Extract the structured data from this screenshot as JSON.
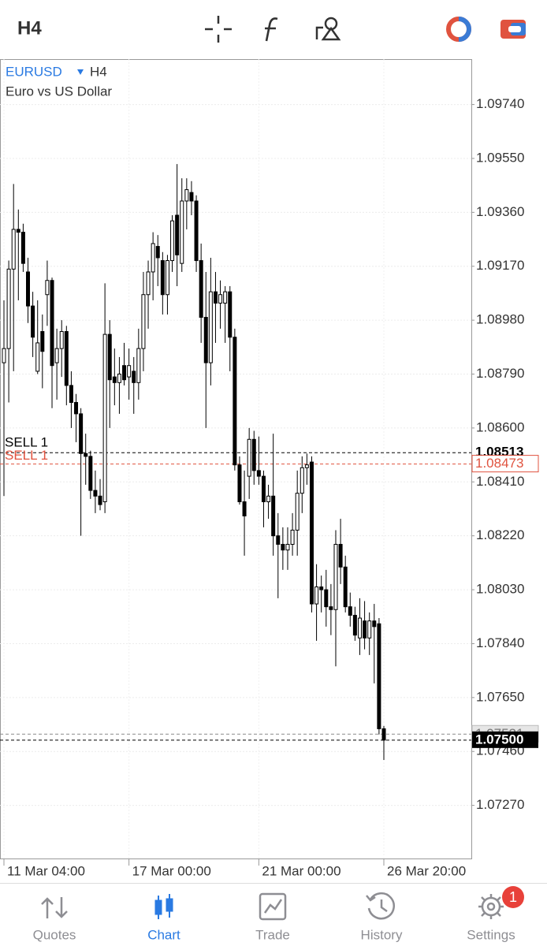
{
  "toolbar": {
    "timeframe": "H4"
  },
  "chart_data": {
    "type": "candlestick",
    "symbol": "EURUSD",
    "timeframe": "H4",
    "description": "Euro vs US Dollar",
    "categories": [
      "11 Mar 04:00",
      null,
      null,
      null,
      null,
      null,
      null,
      null,
      null,
      null,
      null,
      null,
      null,
      null,
      null,
      null,
      null,
      null,
      null,
      null,
      null,
      null,
      null,
      null,
      null,
      null,
      "17 Mar 00:00",
      null,
      null,
      null,
      null,
      null,
      null,
      null,
      null,
      null,
      null,
      null,
      null,
      null,
      null,
      null,
      null,
      null,
      null,
      null,
      null,
      null,
      null,
      null,
      null,
      null,
      null,
      "21 Mar 00:00",
      null,
      null,
      null,
      null,
      null,
      null,
      null,
      null,
      null,
      null,
      null,
      null,
      null,
      null,
      null,
      null,
      null,
      null,
      null,
      null,
      null,
      null,
      null,
      null,
      null,
      "26 Mar 20:00"
    ],
    "open": [
      1.0883,
      1.0888,
      1.0916,
      1.093,
      1.0929,
      1.0915,
      1.0903,
      1.088,
      1.0894,
      1.0907,
      1.0912,
      1.0883,
      1.0888,
      1.0894,
      1.0875,
      1.0869,
      1.0865,
      1.0851,
      1.085,
      1.0838,
      1.0836,
      1.0834,
      1.0893,
      1.0878,
      1.0876,
      1.0882,
      1.0878,
      1.088,
      1.0876,
      1.0888,
      1.0907,
      1.0915,
      1.0924,
      1.0919,
      1.0907,
      1.0919,
      1.0935,
      1.0918,
      1.094,
      1.0943,
      1.094,
      1.0919,
      1.0899,
      1.0883,
      1.0908,
      1.0904,
      1.0904,
      1.0908,
      1.0892,
      1.0847,
      1.0834,
      1.0843,
      1.0856,
      1.0845,
      1.0843,
      1.0834,
      1.0836,
      1.0822,
      1.0819,
      1.0817,
      1.0819,
      1.0824,
      1.0837,
      1.0846,
      1.0848,
      1.0798,
      1.0804,
      1.0803,
      1.0797,
      1.0796,
      1.0819,
      1.0811,
      1.0797,
      1.0794,
      1.0786,
      1.0792,
      1.0786,
      1.0792,
      1.0791,
      1.0754
    ],
    "high": [
      1.0905,
      1.0919,
      1.0946,
      1.0937,
      1.0932,
      1.092,
      1.0908,
      1.0905,
      1.09,
      1.0919,
      1.0913,
      1.0895,
      1.0898,
      1.0896,
      1.088,
      1.0872,
      1.0867,
      1.0858,
      1.0852,
      1.0845,
      1.0842,
      1.0911,
      1.0898,
      1.0888,
      1.0885,
      1.089,
      1.0888,
      1.0885,
      1.0895,
      1.0915,
      1.0919,
      1.0929,
      1.0928,
      1.0922,
      1.0921,
      1.0935,
      1.0953,
      1.0948,
      1.0948,
      1.0947,
      1.0942,
      1.0925,
      1.0915,
      1.092,
      1.0915,
      1.0912,
      1.091,
      1.091,
      1.0895,
      1.085,
      1.0845,
      1.086,
      1.0859,
      1.0857,
      1.0845,
      1.084,
      1.0858,
      1.083,
      1.0825,
      1.0825,
      1.083,
      1.0845,
      1.085,
      1.0851,
      1.085,
      1.0812,
      1.0808,
      1.081,
      1.0805,
      1.0824,
      1.0828,
      1.0815,
      1.0802,
      1.0797,
      1.08,
      1.0799,
      1.0795,
      1.0798,
      1.0793,
      1.0755
    ],
    "low": [
      1.0836,
      1.0869,
      1.088,
      1.0905,
      1.0915,
      1.0897,
      1.0885,
      1.0879,
      1.0874,
      1.0896,
      1.0867,
      1.087,
      1.0878,
      1.0868,
      1.086,
      1.0855,
      1.0822,
      1.084,
      1.0835,
      1.083,
      1.0831,
      1.083,
      1.086,
      1.0868,
      1.0865,
      1.0875,
      1.087,
      1.0865,
      1.087,
      1.088,
      1.0895,
      1.0905,
      1.091,
      1.09,
      1.09,
      1.0915,
      1.091,
      1.0915,
      1.093,
      1.0935,
      1.0915,
      1.089,
      1.086,
      1.0875,
      1.089,
      1.0895,
      1.089,
      1.088,
      1.0845,
      1.0833,
      1.0815,
      1.0835,
      1.084,
      1.084,
      1.0825,
      1.0828,
      1.0815,
      1.08,
      1.081,
      1.081,
      1.0815,
      1.0815,
      1.083,
      1.084,
      1.0795,
      1.0785,
      1.0795,
      1.079,
      1.0787,
      1.0776,
      1.0805,
      1.0795,
      1.079,
      1.0785,
      1.078,
      1.0782,
      1.078,
      1.077,
      1.0752,
      1.0743
    ],
    "close": [
      1.0888,
      1.0916,
      1.093,
      1.0929,
      1.0918,
      1.0903,
      1.0892,
      1.089,
      1.0887,
      1.0912,
      1.0882,
      1.0888,
      1.0894,
      1.0875,
      1.0869,
      1.0865,
      1.0851,
      1.085,
      1.0838,
      1.0836,
      1.0833,
      1.0893,
      1.0877,
      1.0876,
      1.0879,
      1.0877,
      1.0882,
      1.0876,
      1.0888,
      1.0907,
      1.0915,
      1.0925,
      1.092,
      1.0907,
      1.0919,
      1.0933,
      1.0921,
      1.094,
      1.0944,
      1.094,
      1.0919,
      1.0899,
      1.0883,
      1.0908,
      1.0904,
      1.0907,
      1.0908,
      1.0892,
      1.0847,
      1.0834,
      1.0829,
      1.0856,
      1.0845,
      1.0843,
      1.0834,
      1.0836,
      1.0822,
      1.0819,
      1.0817,
      1.0819,
      1.0824,
      1.0837,
      1.0846,
      1.0847,
      1.0798,
      1.0804,
      1.0803,
      1.0797,
      1.0796,
      1.0819,
      1.0811,
      1.0797,
      1.0794,
      1.0787,
      1.0793,
      1.0786,
      1.0792,
      1.079,
      1.0754,
      1.075
    ],
    "ylim": [
      1.0708,
      1.099
    ],
    "yticks": [
      {
        "value": 1.0974,
        "label": "1.09740"
      },
      {
        "value": 1.0955,
        "label": "1.09550"
      },
      {
        "value": 1.0936,
        "label": "1.09360"
      },
      {
        "value": 1.0917,
        "label": "1.09170"
      },
      {
        "value": 1.0898,
        "label": "1.08980"
      },
      {
        "value": 1.0879,
        "label": "1.08790"
      },
      {
        "value": 1.086,
        "label": "1.08600"
      },
      {
        "value": 1.0841,
        "label": "1.08410"
      },
      {
        "value": 1.0822,
        "label": "1.08220"
      },
      {
        "value": 1.0803,
        "label": "1.08030"
      },
      {
        "value": 1.0784,
        "label": "1.07840"
      },
      {
        "value": 1.0765,
        "label": "1.07650"
      },
      {
        "value": 1.0746,
        "label": "1.07460"
      },
      {
        "value": 1.0727,
        "label": "1.07270"
      }
    ],
    "grid": true,
    "up_color": "#ffffff",
    "down_color": "#000000",
    "price_lines": [
      {
        "name": "SELL 1",
        "value": 1.08513,
        "color": "#000000"
      },
      {
        "name": "SELL 1",
        "value": 1.08473,
        "color": "#e0533f"
      },
      {
        "value": 1.07521,
        "color": "#8a8a8a"
      },
      {
        "value": 1.075,
        "value_label": "1.07500",
        "color": "#000000"
      }
    ]
  },
  "nav": {
    "items": [
      "Quotes",
      "Chart",
      "Trade",
      "History",
      "Settings"
    ],
    "active": 1,
    "badge": 1
  }
}
